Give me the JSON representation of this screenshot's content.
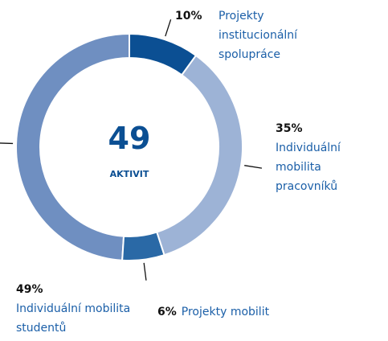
{
  "chart_data": {
    "type": "pie",
    "donut": true,
    "categories": [
      "Projekty institucionální spolupráce",
      "Individuální mobilita pracovníků",
      "Projekty mobilit",
      "Individuální mobilita studentů"
    ],
    "values": [
      10,
      35,
      6,
      49
    ],
    "value_labels": [
      "10%",
      "35%",
      "6%",
      "49%"
    ],
    "colors": [
      "#0b4f93",
      "#9db3d6",
      "#2a69a6",
      "#6f8fc1"
    ],
    "center_value": 49,
    "center_label": "AKTIVIT"
  }
}
